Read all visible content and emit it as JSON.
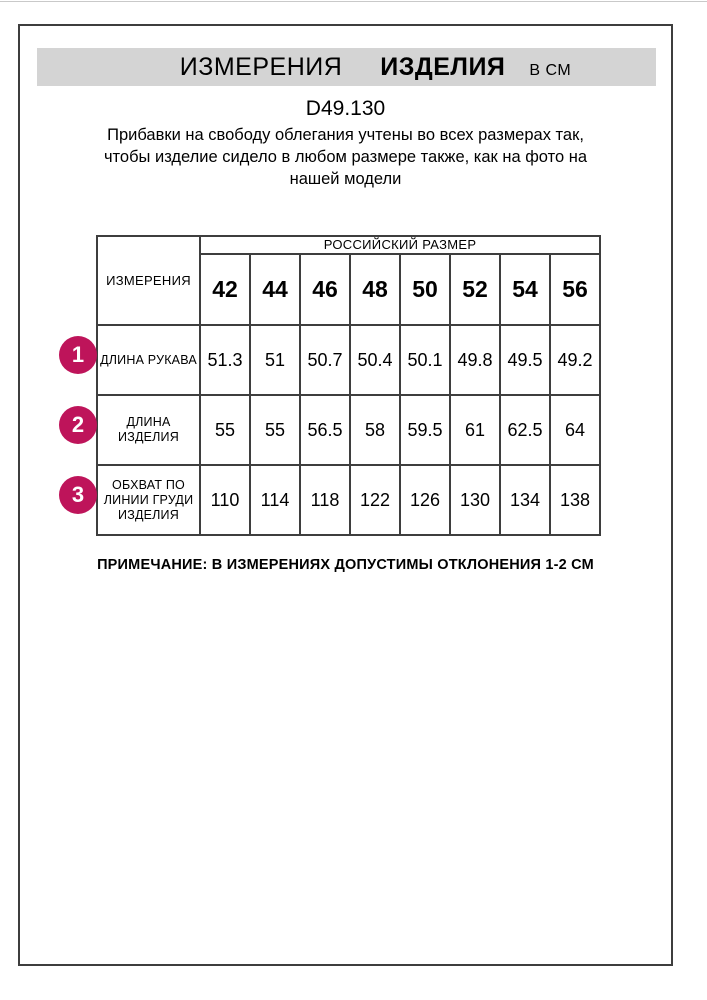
{
  "header": {
    "title_measurements": "ИЗМЕРЕНИЯ",
    "title_product": "ИЗДЕЛИЯ",
    "units": "В СМ",
    "product_code": "D49.130",
    "description": "Прибавки на свободу облегания учтены во всех размерах так, чтобы изделие сидело в любом размере также, как на фото на нашей модели"
  },
  "table": {
    "corner_header": "ИЗМЕРЕНИЯ",
    "group_header": "РОССИЙСКИЙ РАЗМЕР",
    "sizes": [
      "42",
      "44",
      "46",
      "48",
      "50",
      "52",
      "54",
      "56"
    ],
    "rows": [
      {
        "num": "1",
        "label": "ДЛИНА РУКАВА",
        "values": [
          "51.3",
          "51",
          "50.7",
          "50.4",
          "50.1",
          "49.8",
          "49.5",
          "49.2"
        ]
      },
      {
        "num": "2",
        "label": "ДЛИНА\nИЗДЕЛИЯ",
        "values": [
          "55",
          "55",
          "56.5",
          "58",
          "59.5",
          "61",
          "62.5",
          "64"
        ]
      },
      {
        "num": "3",
        "label": "ОБХВАТ ПО\nЛИНИИ ГРУДИ\nИЗДЕЛИЯ",
        "values": [
          "110",
          "114",
          "118",
          "122",
          "126",
          "130",
          "134",
          "138"
        ]
      }
    ]
  },
  "footer": {
    "note": "ПРИМЕЧАНИЕ: В ИЗМЕРЕНИЯХ ДОПУСТИМЫ ОТКЛОНЕНИЯ 1-2 СМ"
  },
  "colors": {
    "badge": "#BE145A",
    "header_bar": "#D4D4D4"
  }
}
